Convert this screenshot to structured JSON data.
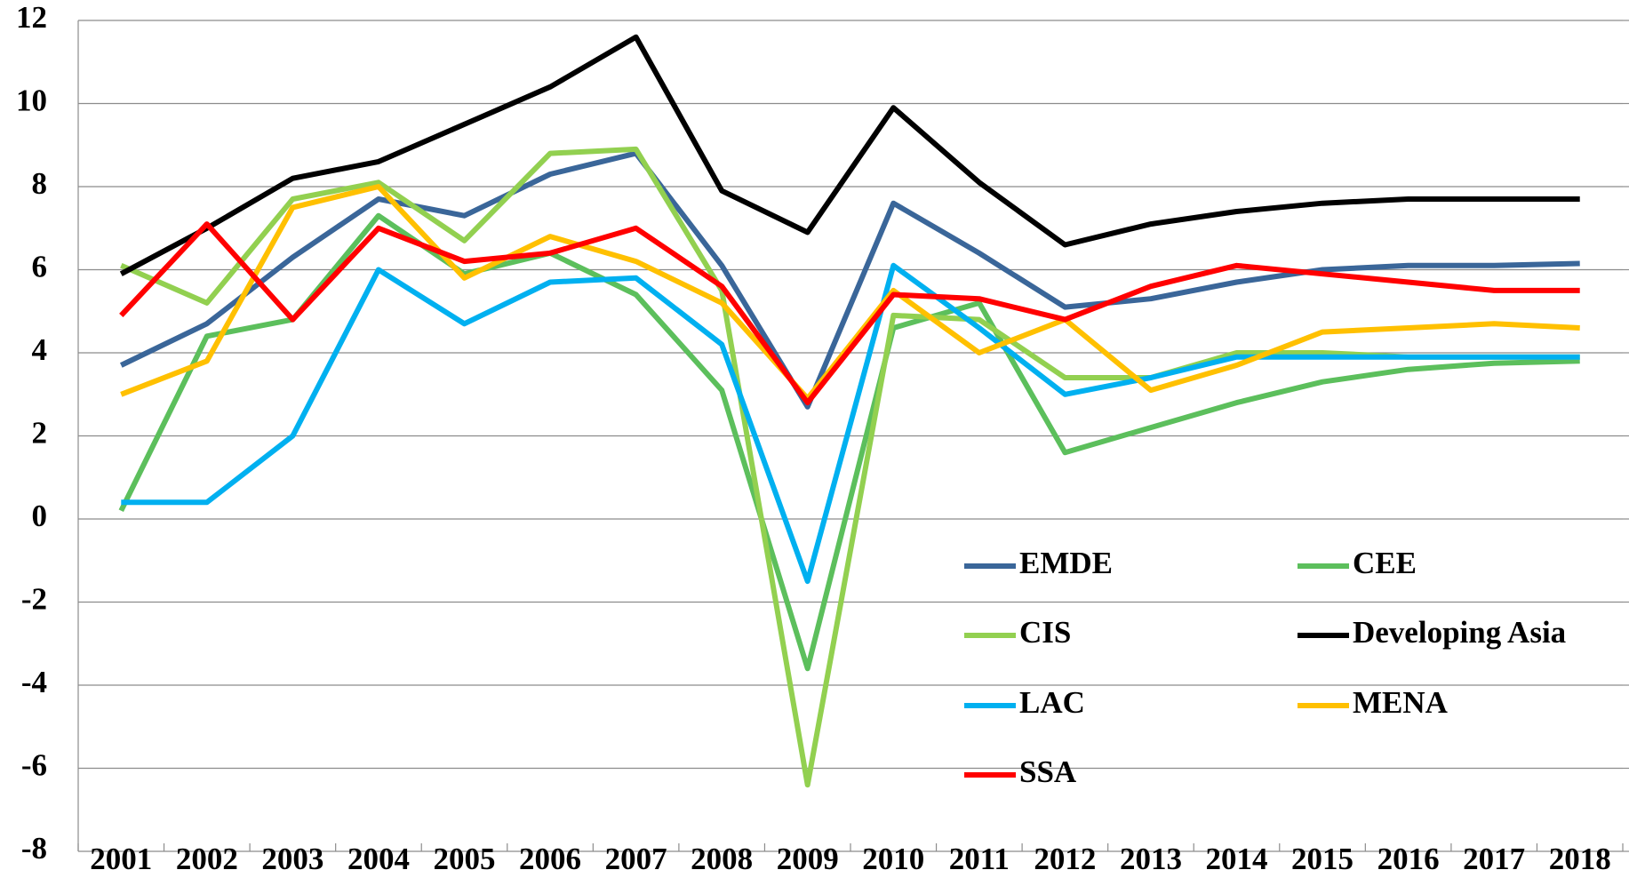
{
  "chart_data": {
    "type": "line",
    "categories": [
      "2001",
      "2002",
      "2003",
      "2004",
      "2005",
      "2006",
      "2007",
      "2008",
      "2009",
      "2010",
      "2011",
      "2012",
      "2013",
      "2014",
      "2015",
      "2016",
      "2017",
      "2018"
    ],
    "series": [
      {
        "name": "EMDE",
        "color": "#3a6699",
        "values": [
          3.7,
          4.7,
          6.3,
          7.7,
          7.3,
          8.3,
          8.8,
          6.1,
          2.7,
          7.6,
          6.4,
          5.1,
          5.3,
          5.7,
          6.0,
          6.1,
          6.1,
          6.15
        ]
      },
      {
        "name": "CEE",
        "color": "#5cbf5c",
        "values": [
          0.2,
          4.4,
          4.8,
          7.3,
          5.9,
          6.4,
          5.4,
          3.1,
          -3.6,
          4.6,
          5.2,
          1.6,
          2.2,
          2.8,
          3.3,
          3.6,
          3.75,
          3.8
        ]
      },
      {
        "name": "CIS",
        "color": "#92d050",
        "values": [
          6.1,
          5.2,
          7.7,
          8.1,
          6.7,
          8.8,
          8.9,
          5.5,
          -6.4,
          4.9,
          4.8,
          3.4,
          3.4,
          4.0,
          4.0,
          3.9,
          3.9,
          3.9
        ]
      },
      {
        "name": "Developing Asia",
        "color": "#000000",
        "values": [
          5.9,
          7.0,
          8.2,
          8.6,
          9.5,
          10.4,
          11.6,
          7.9,
          6.9,
          9.9,
          8.1,
          6.6,
          7.1,
          7.4,
          7.6,
          7.7,
          7.7,
          7.7
        ]
      },
      {
        "name": "LAC",
        "color": "#00b0f0",
        "values": [
          0.4,
          0.4,
          2.0,
          6.0,
          4.7,
          5.7,
          5.8,
          4.2,
          -1.5,
          6.1,
          4.6,
          3.0,
          3.4,
          3.9,
          3.9,
          3.9,
          3.9,
          3.9
        ]
      },
      {
        "name": "MENA",
        "color": "#ffc000",
        "values": [
          3.0,
          3.8,
          7.5,
          8.0,
          5.8,
          6.8,
          6.2,
          5.2,
          2.9,
          5.5,
          4.0,
          4.8,
          3.1,
          3.7,
          4.5,
          4.6,
          4.7,
          4.6
        ]
      },
      {
        "name": "SSA",
        "color": "#ff0000",
        "values": [
          4.9,
          7.1,
          4.8,
          7.0,
          6.2,
          6.4,
          7.0,
          5.6,
          2.8,
          5.4,
          5.3,
          4.8,
          5.6,
          6.1,
          5.9,
          5.7,
          5.5,
          5.5
        ]
      }
    ],
    "ylim": [
      -8,
      12
    ],
    "yticks": [
      -8,
      -6,
      -4,
      -2,
      0,
      2,
      4,
      6,
      8,
      10,
      12
    ],
    "grid": true,
    "legend": "lower right"
  }
}
